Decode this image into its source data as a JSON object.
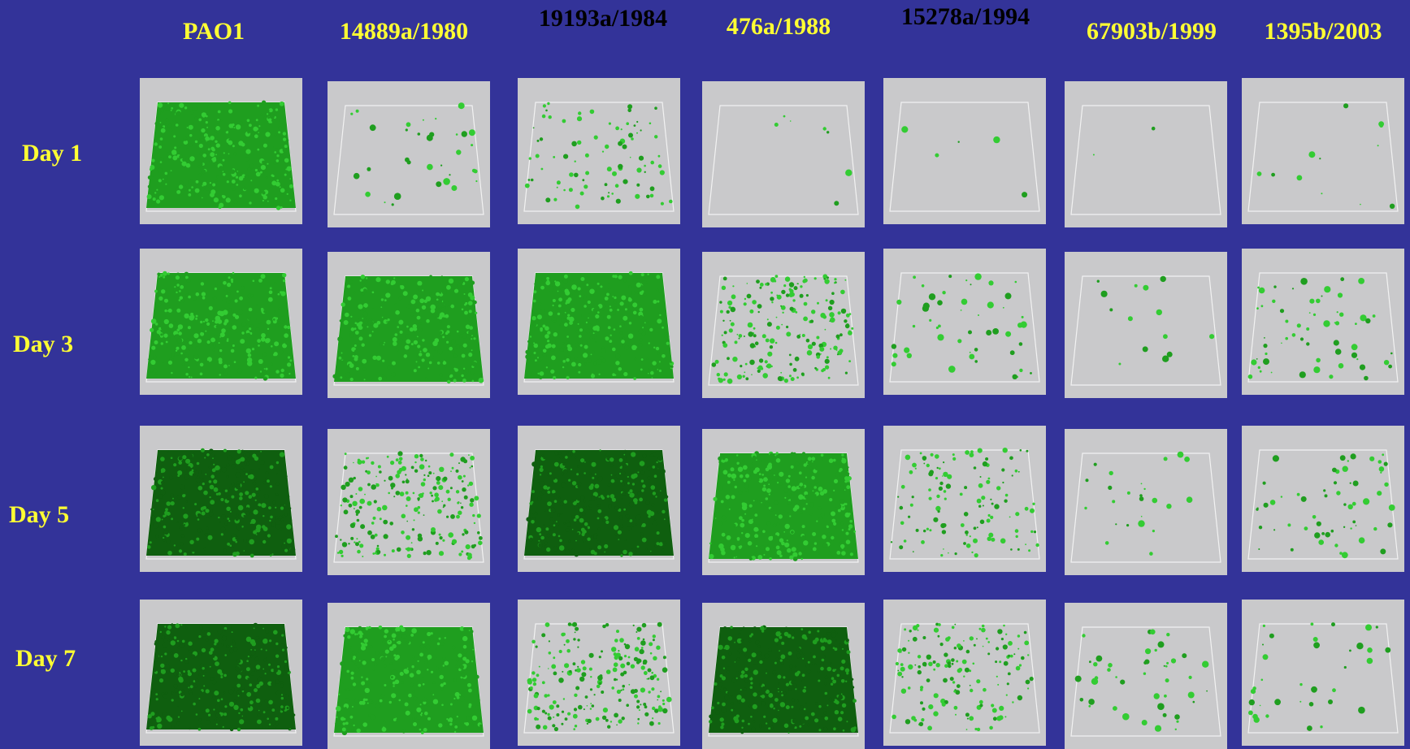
{
  "columns": [
    {
      "label": "PAO1",
      "color": "#ffff33"
    },
    {
      "label": "14889a/1980",
      "color": "#ffff33"
    },
    {
      "label": "19193a/1984",
      "color": "#000000"
    },
    {
      "label": "476a/1988",
      "color": "#ffff33"
    },
    {
      "label": "15278a/1994",
      "color": "#000000"
    },
    {
      "label": "67903b/1999",
      "color": "#ffff33"
    },
    {
      "label": "1395b/2003",
      "color": "#ffff33"
    }
  ],
  "rows": [
    {
      "label": "Day 1"
    },
    {
      "label": "Day 3"
    },
    {
      "label": "Day 5"
    },
    {
      "label": "Day 7"
    }
  ],
  "colors": {
    "background": "#333399",
    "tile_background": "#c9c9cb",
    "biofilm_light": "#33cc33",
    "biofilm_mid": "#1f9e1f",
    "biofilm_dark": "#0f5f0f"
  }
}
